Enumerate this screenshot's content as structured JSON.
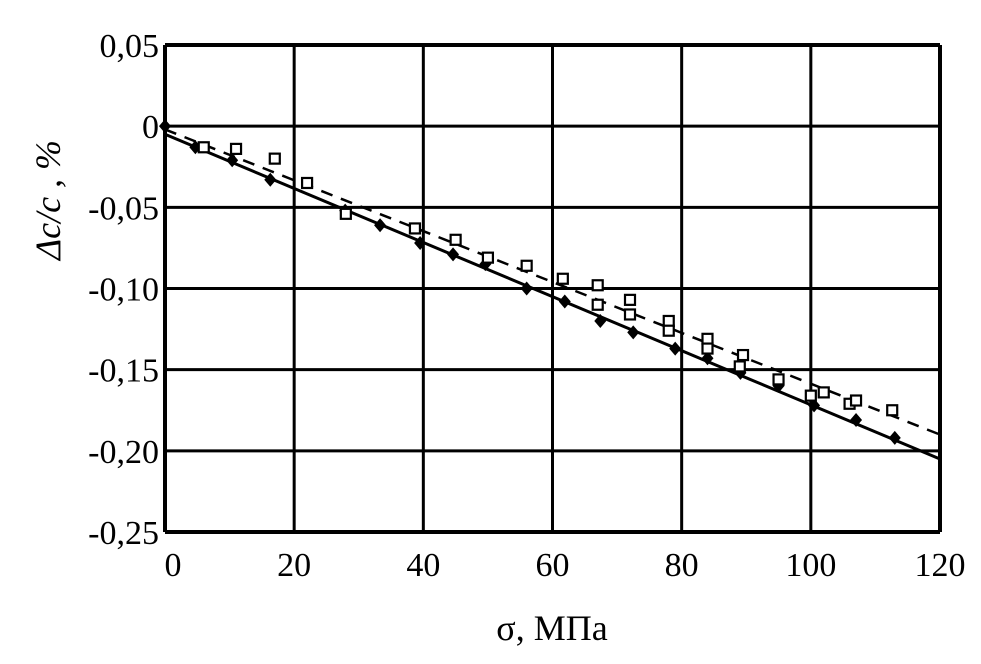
{
  "chart_data": {
    "type": "scatter",
    "title": "",
    "xlabel": "σ, МПа",
    "ylabel": "Δc/c , %",
    "xlim": [
      0,
      120
    ],
    "ylim": [
      -0.25,
      0.05
    ],
    "grid": true,
    "x_ticks": [
      0,
      20,
      40,
      60,
      80,
      100,
      120
    ],
    "x_tick_labels": [
      "0",
      "20",
      "40",
      "60",
      "80",
      "100",
      "120"
    ],
    "y_ticks": [
      0.05,
      0,
      -0.05,
      -0.1,
      -0.15,
      -0.2,
      -0.25
    ],
    "y_tick_labels": [
      "0,05",
      "0",
      "-0,05",
      "-0,10",
      "-0,15",
      "-0,20",
      "-0,25"
    ],
    "series": [
      {
        "marker": "filled-diamond",
        "color": "#000000",
        "fit_line": {
          "style": "solid",
          "x": [
            0,
            120
          ],
          "y": [
            -0.005,
            -0.205
          ]
        },
        "points": [
          [
            0,
            0
          ],
          [
            4.7,
            -0.013
          ],
          [
            10.4,
            -0.021
          ],
          [
            16.3,
            -0.033
          ],
          [
            27.9,
            -0.052
          ],
          [
            33.3,
            -0.061
          ],
          [
            39.5,
            -0.072
          ],
          [
            44.6,
            -0.079
          ],
          [
            49.6,
            -0.085
          ],
          [
            56,
            -0.1
          ],
          [
            61.9,
            -0.108
          ],
          [
            67.4,
            -0.12
          ],
          [
            72.5,
            -0.127
          ],
          [
            79,
            -0.137
          ],
          [
            84,
            -0.143
          ],
          [
            89.1,
            -0.152
          ],
          [
            95,
            -0.16
          ],
          [
            100.5,
            -0.172
          ],
          [
            107,
            -0.181
          ],
          [
            113,
            -0.192
          ]
        ]
      },
      {
        "marker": "open-square",
        "color": "#000000",
        "fit_line": {
          "style": "dashed",
          "x": [
            0,
            120
          ],
          "y": [
            -0.002,
            -0.19
          ]
        },
        "points": [
          [
            6,
            -0.013
          ],
          [
            11,
            -0.014
          ],
          [
            17,
            -0.02
          ],
          [
            22,
            -0.035
          ],
          [
            28,
            -0.054
          ],
          [
            38.7,
            -0.063
          ],
          [
            45,
            -0.07
          ],
          [
            50,
            -0.081
          ],
          [
            56,
            -0.086
          ],
          [
            61.6,
            -0.094
          ],
          [
            67,
            -0.098
          ],
          [
            67,
            -0.11
          ],
          [
            72,
            -0.107
          ],
          [
            72,
            -0.116
          ],
          [
            78,
            -0.12
          ],
          [
            78,
            -0.126
          ],
          [
            84,
            -0.131
          ],
          [
            84,
            -0.137
          ],
          [
            89.5,
            -0.141
          ],
          [
            89,
            -0.148
          ],
          [
            95,
            -0.156
          ],
          [
            100,
            -0.166
          ],
          [
            102,
            -0.164
          ],
          [
            106,
            -0.171
          ],
          [
            107,
            -0.169
          ],
          [
            112.6,
            -0.175
          ]
        ]
      }
    ]
  }
}
